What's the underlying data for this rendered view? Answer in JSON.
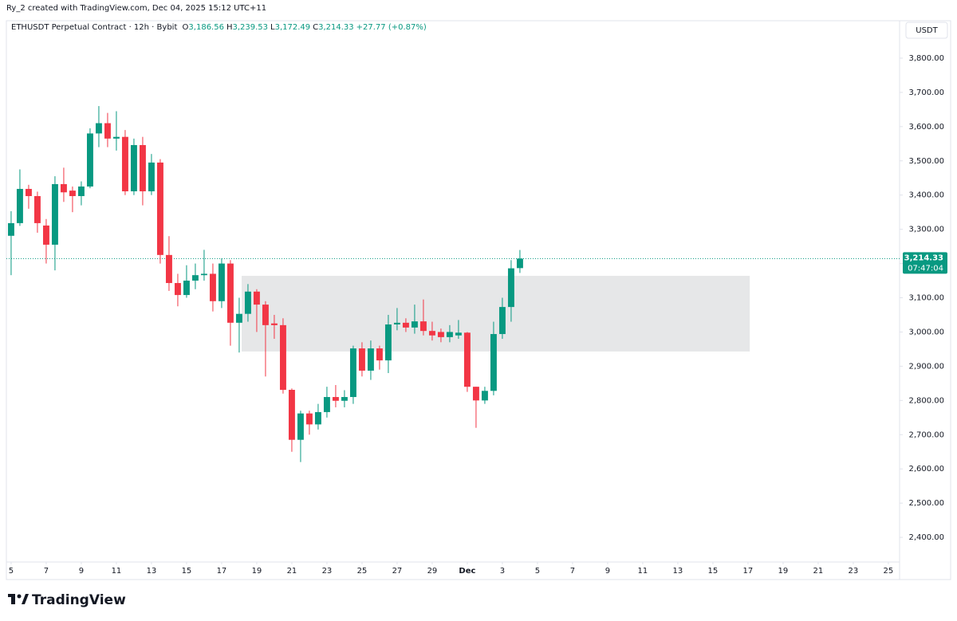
{
  "chart_data": {
    "type": "candlestick",
    "credit": "Ry_2 created with TradingView.com, Dec 04, 2025 15:12 UTC+11",
    "title": "ETHUSDT Perpetual Contract · 12h · Bybit",
    "ohlc": [
      {
        "key": "O",
        "value": "3,186.56"
      },
      {
        "key": "H",
        "value": "3,239.53"
      },
      {
        "key": "L",
        "value": "3,172.49"
      },
      {
        "key": "C",
        "value": "3,214.33"
      }
    ],
    "change": "+27.77 (+0.87%)",
    "currency": "USDT",
    "brand": "TradingView",
    "up_color": "#089981",
    "down_color": "#f23645",
    "x": [
      5,
      5.5,
      6,
      6.5,
      7,
      7.5,
      8,
      8.5,
      9,
      9.5,
      10,
      10.5,
      11,
      11.5,
      12,
      12.5,
      13,
      13.5,
      14,
      14.5,
      15,
      15.5,
      16,
      16.5,
      17,
      17.5,
      18,
      18.5,
      19,
      19.5,
      20,
      20.5,
      21,
      21.5,
      22,
      22.5,
      23,
      23.5,
      24,
      24.5,
      25,
      25.5,
      26,
      26.5,
      27,
      27.5,
      28,
      28.5,
      29,
      29.5,
      30,
      30.5,
      31,
      31.5,
      32,
      32.5,
      33,
      33.5,
      34
    ],
    "open": [
      3281,
      3318,
      3418,
      3397,
      3311,
      3255,
      3432,
      3413,
      3397,
      3425,
      3580,
      3610,
      3565,
      3570,
      3411,
      3546,
      3411,
      3495,
      3225,
      3143,
      3108,
      3150,
      3166,
      3170,
      3090,
      3200,
      3027,
      3053,
      3118,
      3080,
      3025,
      3020,
      2831,
      2685,
      2762,
      2730,
      2766,
      2810,
      2799,
      2810,
      2952,
      2887,
      2952,
      2917,
      3022,
      3027,
      3013,
      3031,
      3003,
      3000,
      2985,
      2990,
      2998,
      2840,
      2800,
      2828,
      2994,
      3073,
      3186.56
    ],
    "high": [
      3353,
      3475,
      3430,
      3410,
      3330,
      3455,
      3480,
      3425,
      3440,
      3595,
      3660,
      3640,
      3645,
      3590,
      3565,
      3570,
      3520,
      3505,
      3280,
      3170,
      3195,
      3200,
      3240,
      3200,
      3215,
      3210,
      3100,
      3140,
      3125,
      3090,
      3050,
      3040,
      2835,
      2770,
      2770,
      2790,
      2840,
      2845,
      2830,
      2960,
      2970,
      2975,
      2960,
      3050,
      3070,
      3040,
      3080,
      3095,
      3030,
      3010,
      3020,
      3035,
      3000,
      2840,
      2840,
      3030,
      3100,
      3210,
      3239.53
    ],
    "low": [
      3166,
      3310,
      3360,
      3290,
      3200,
      3180,
      3380,
      3350,
      3370,
      3420,
      3540,
      3540,
      3530,
      3400,
      3400,
      3370,
      3400,
      3200,
      3120,
      3075,
      3100,
      3125,
      3150,
      3060,
      3070,
      2960,
      2940,
      3030,
      3000,
      2870,
      2980,
      2820,
      2650,
      2620,
      2700,
      2715,
      2750,
      2780,
      2780,
      2790,
      2870,
      2860,
      2890,
      2880,
      3005,
      3000,
      2995,
      2990,
      2975,
      2970,
      2970,
      2980,
      2825,
      2720,
      2790,
      2815,
      2980,
      3030,
      3172.49
    ],
    "close": [
      3318,
      3418,
      3397,
      3318,
      3255,
      3432,
      3408,
      3397,
      3425,
      3580,
      3610,
      3565,
      3570,
      3411,
      3546,
      3411,
      3495,
      3225,
      3143,
      3108,
      3150,
      3166,
      3170,
      3090,
      3200,
      3027,
      3053,
      3118,
      3080,
      3020,
      3020,
      2831,
      2685,
      2762,
      2730,
      2766,
      2810,
      2799,
      2810,
      2952,
      2887,
      2952,
      2917,
      3022,
      3027,
      3013,
      3031,
      3003,
      2990,
      2985,
      3000,
      2998,
      2840,
      2800,
      2828,
      2994,
      3073,
      3186,
      3214.33
    ],
    "zone": {
      "x": [
        18.14,
        47.1
      ],
      "y": [
        2943,
        3164
      ],
      "color": "#e3e4e6"
    },
    "last_price": {
      "value": 3214.33,
      "label": "3,214.33"
    },
    "countdown": "07:47:04",
    "xlim": [
      4.73,
      55.64
    ],
    "xticks": [
      5,
      7,
      9,
      11,
      13,
      15,
      17,
      19,
      21,
      23,
      25,
      27,
      29,
      {
        "value": 31,
        "label": "Dec"
      },
      {
        "value": 33,
        "label": "3"
      },
      {
        "value": 35,
        "label": "5"
      },
      {
        "value": 37,
        "label": "7"
      },
      {
        "value": 39,
        "label": "9"
      },
      {
        "value": 41,
        "label": "11"
      },
      {
        "value": 43,
        "label": "13"
      },
      {
        "value": 45,
        "label": "15"
      },
      {
        "value": 47,
        "label": "17"
      },
      {
        "value": 49,
        "label": "19"
      },
      {
        "value": 51,
        "label": "21"
      },
      {
        "value": 53,
        "label": "23"
      },
      {
        "value": 55,
        "label": "25"
      }
    ],
    "ylim": [
      2328,
      3900
    ],
    "yticks": [
      {
        "value": 2400,
        "label": "2,400.00"
      },
      {
        "value": 2500,
        "label": "2,500.00"
      },
      {
        "value": 2600,
        "label": "2,600.00"
      },
      {
        "value": 2700,
        "label": "2,700.00"
      },
      {
        "value": 2800,
        "label": "2,800.00"
      },
      {
        "value": 2900,
        "label": "2,900.00"
      },
      {
        "value": 3000,
        "label": "3,000.00"
      },
      {
        "value": 3100,
        "label": "3,100.00"
      },
      {
        "value": 3200,
        "label": "3,200.00"
      },
      {
        "value": 3300,
        "label": "3,300.00"
      },
      {
        "value": 3400,
        "label": "3,400.00"
      },
      {
        "value": 3500,
        "label": "3,500.00"
      },
      {
        "value": 3600,
        "label": "3,600.00"
      },
      {
        "value": 3700,
        "label": "3,700.00"
      },
      {
        "value": 3800,
        "label": "3,800.00"
      }
    ]
  }
}
